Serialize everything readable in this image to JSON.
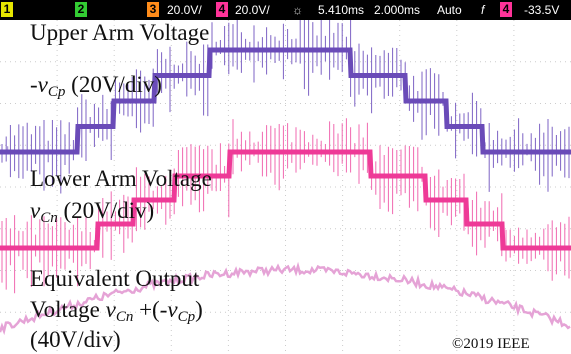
{
  "status_bar": {
    "ch1": "1",
    "ch2": "2",
    "ch3": "3",
    "ch3_scale": "20.0V/",
    "ch4": "4",
    "ch4_scale": "20.0V/",
    "delay": "5.410ms",
    "timebase": "2.000ms",
    "trigger_mode": "Auto",
    "trigger_slope": "f",
    "trigger_source": "4",
    "trigger_level": "-33.5V"
  },
  "labels": {
    "upper": {
      "line1": "Upper Arm Voltage",
      "sign": "-",
      "var": "v",
      "sub": "Cp",
      "scale": " (20V/div)"
    },
    "lower": {
      "line1": "Lower Arm Voltage",
      "var": "v",
      "sub": "Cn",
      "scale": " (20V/div)"
    },
    "output": {
      "line1": "Equivalent Output",
      "prefix": "Voltage ",
      "var1": "v",
      "sub1": "Cn",
      "mid": " +(-",
      "var2": "v",
      "sub2": "Cp",
      "close": ")",
      "scale": "(40V/div)"
    }
  },
  "copyright": "©2019 IEEE"
}
